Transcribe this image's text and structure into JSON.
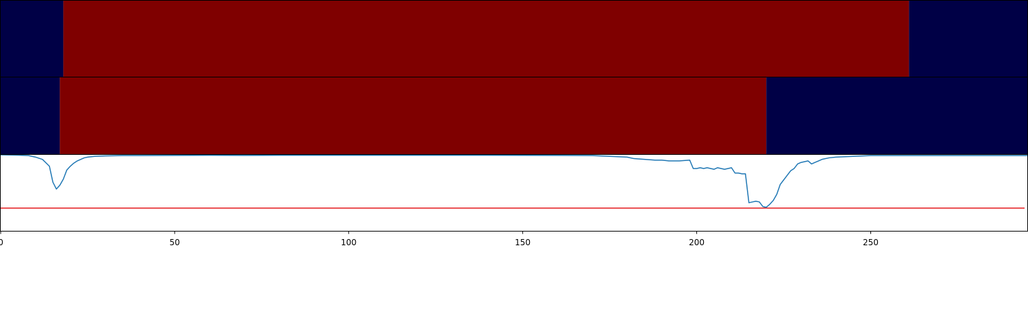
{
  "chart_data": [
    {
      "type": "heatmap",
      "xlim": [
        0,
        295
      ],
      "segments": [
        {
          "start": 0,
          "end": 18,
          "state": "low"
        },
        {
          "start": 18,
          "end": 261,
          "state": "high"
        },
        {
          "start": 261,
          "end": 295,
          "state": "low"
        }
      ]
    },
    {
      "type": "heatmap",
      "xlim": [
        0,
        295
      ],
      "segments": [
        {
          "start": 0,
          "end": 17,
          "state": "low"
        },
        {
          "start": 17,
          "end": 220,
          "state": "high"
        },
        {
          "start": 220,
          "end": 295,
          "state": "low"
        }
      ]
    },
    {
      "type": "line",
      "xlim": [
        0,
        295
      ],
      "ylim": [
        -1.0,
        0.0
      ],
      "xticks": [
        0,
        50,
        100,
        150,
        200,
        250
      ],
      "threshold": -0.7,
      "x": [
        0,
        5,
        8,
        10,
        12,
        14,
        15,
        16,
        17,
        18,
        19,
        20,
        21,
        22,
        23,
        24,
        25,
        27,
        30,
        35,
        40,
        50,
        60,
        70,
        80,
        100,
        120,
        140,
        160,
        170,
        175,
        180,
        182,
        185,
        188,
        190,
        192,
        195,
        198,
        199,
        200,
        201,
        202,
        203,
        204,
        205,
        206,
        207,
        208,
        209,
        210,
        211,
        212,
        213,
        214,
        215,
        216,
        217,
        218,
        219,
        220,
        221,
        222,
        223,
        224,
        225,
        226,
        227,
        228,
        229,
        230,
        231,
        232,
        233,
        234,
        235,
        236,
        238,
        240,
        245,
        250,
        260,
        265,
        270,
        280,
        295
      ],
      "y": [
        0.0,
        -0.005,
        -0.01,
        -0.03,
        -0.06,
        -0.15,
        -0.36,
        -0.45,
        -0.4,
        -0.32,
        -0.2,
        -0.15,
        -0.11,
        -0.08,
        -0.06,
        -0.04,
        -0.03,
        -0.02,
        -0.015,
        -0.01,
        -0.01,
        -0.008,
        -0.006,
        -0.008,
        -0.006,
        -0.006,
        -0.006,
        -0.006,
        -0.008,
        -0.01,
        -0.02,
        -0.03,
        -0.05,
        -0.06,
        -0.07,
        -0.07,
        -0.08,
        -0.08,
        -0.07,
        -0.18,
        -0.18,
        -0.17,
        -0.18,
        -0.17,
        -0.18,
        -0.19,
        -0.17,
        -0.18,
        -0.19,
        -0.18,
        -0.17,
        -0.24,
        -0.24,
        -0.25,
        -0.25,
        -0.63,
        -0.62,
        -0.61,
        -0.62,
        -0.68,
        -0.69,
        -0.65,
        -0.6,
        -0.52,
        -0.39,
        -0.33,
        -0.27,
        -0.21,
        -0.18,
        -0.12,
        -0.1,
        -0.09,
        -0.08,
        -0.12,
        -0.1,
        -0.08,
        -0.06,
        -0.04,
        -0.03,
        -0.02,
        -0.01,
        -0.01,
        -0.01,
        -0.01,
        -0.01,
        -0.01
      ]
    }
  ],
  "colors": {
    "low": "#000046",
    "high": "#7f0000",
    "line": "#1f77b4",
    "threshold": "#e41a1c",
    "axis": "#000000",
    "background": "#ffffff"
  }
}
